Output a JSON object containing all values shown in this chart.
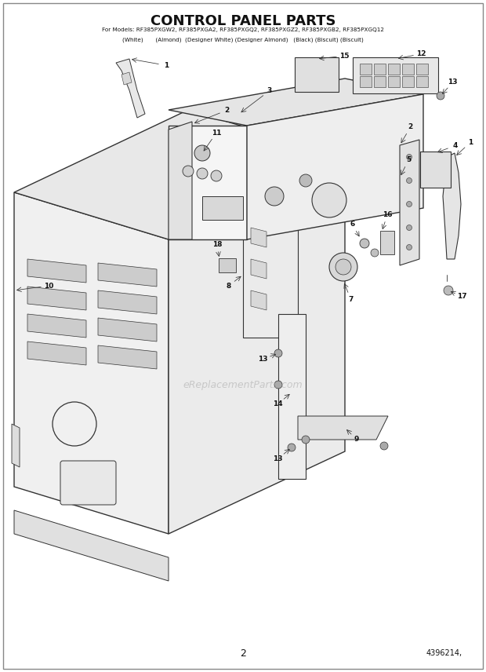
{
  "title": "CONTROL PANEL PARTS",
  "subtitle_line1": "For Models: RF385PXGW2, RF385PXGA2, RF385PXGQ2, RF385PXGZ2, RF385PXGB2, RF385PXGQ12",
  "subtitle_line2": "(White)       (Almond)  (Designer White) (Designer Almond)   (Black) (Biscuit) (Biscuit)",
  "page_number": "2",
  "part_number": "4396214,",
  "watermark": "eReplacementParts.com",
  "bg_color": "#ffffff",
  "title_color": "#111111",
  "line_color": "#333333"
}
